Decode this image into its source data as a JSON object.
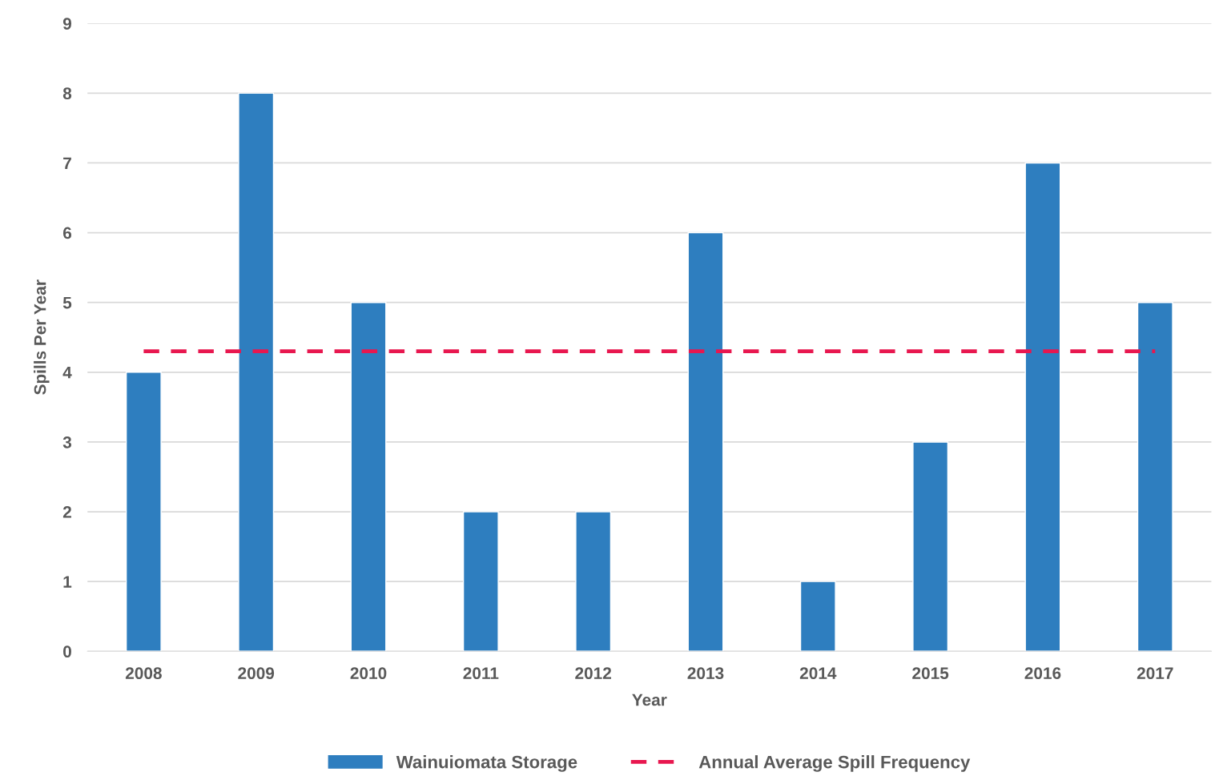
{
  "chart_data": {
    "type": "bar",
    "xlabel": "Year",
    "ylabel": "Spills Per Year",
    "categories": [
      "2008",
      "2009",
      "2010",
      "2011",
      "2012",
      "2013",
      "2014",
      "2015",
      "2016",
      "2017"
    ],
    "series": [
      {
        "name": "Wainuiomata Storage",
        "color": "#2e7ebf",
        "values": [
          4,
          8,
          5,
          2,
          2,
          6,
          1,
          3,
          7,
          5
        ]
      },
      {
        "name": "Annual Average Spill Frequency",
        "type": "line",
        "color": "#e8174f",
        "line_style": "dashed",
        "marker": "none",
        "values": [
          4.3,
          4.3,
          4.3,
          4.3,
          4.3,
          4.3,
          4.3,
          4.3,
          4.3,
          4.3
        ]
      }
    ],
    "ylim": [
      0,
      9
    ],
    "yticks": [
      0,
      1,
      2,
      3,
      4,
      5,
      6,
      7,
      8,
      9
    ],
    "grid": "y",
    "legend": "bottom"
  }
}
